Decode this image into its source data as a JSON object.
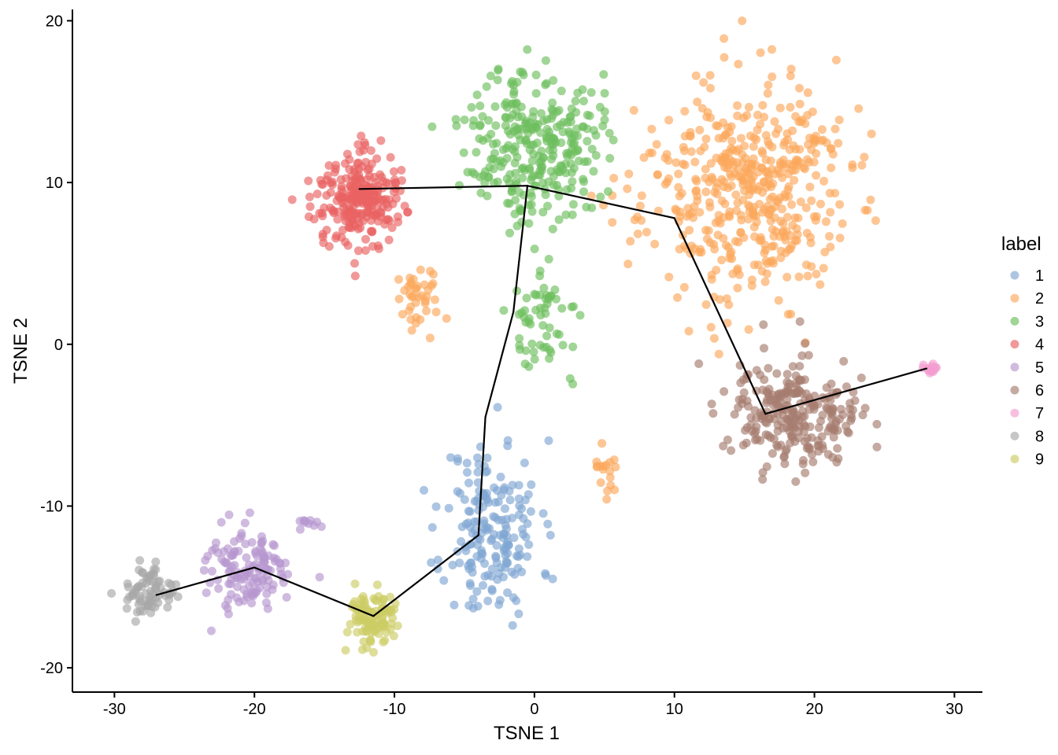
{
  "chart_data": {
    "type": "scatter",
    "title": "",
    "xlabel": "TSNE 1",
    "ylabel": "TSNE 2",
    "xlim": [
      -33,
      32
    ],
    "ylim": [
      -21.5,
      20.7
    ],
    "x_ticks": [
      -30,
      -20,
      -10,
      0,
      10,
      20,
      30
    ],
    "y_ticks": [
      -20,
      -10,
      0,
      10,
      20
    ],
    "x_tick_labels": [
      "-30",
      "-20",
      "-10",
      "0",
      "10",
      "20",
      "30"
    ],
    "y_tick_labels": [
      "-20",
      "-10",
      "0",
      "10",
      "20"
    ],
    "grid": false,
    "point_alpha": 0.65,
    "legend": {
      "title": "label",
      "position": "right",
      "entries": [
        "1",
        "2",
        "3",
        "4",
        "5",
        "6",
        "7",
        "8",
        "9"
      ]
    },
    "colors": {
      "1": "#7fa6d3",
      "2": "#fca85a",
      "3": "#6dbf5d",
      "4": "#e96262",
      "5": "#b796cf",
      "6": "#a67d6e",
      "7": "#f29ccf",
      "8": "#a8a8a8",
      "9": "#cdcc66"
    },
    "trajectory": {
      "x": [
        -12.5,
        -0.5,
        10.0,
        16.5,
        28.0,
        -0.5,
        -1.5,
        -3.5,
        -4.0,
        -11.5,
        -20.0,
        -27.0
      ],
      "y": [
        9.6,
        9.8,
        7.8,
        -4.3,
        -1.5,
        9.8,
        2.0,
        -4.5,
        -11.8,
        -16.8,
        -13.8,
        -15.5
      ],
      "segments": [
        [
          0,
          1
        ],
        [
          1,
          2
        ],
        [
          2,
          3
        ],
        [
          3,
          4
        ],
        [
          1,
          6
        ],
        [
          6,
          7
        ],
        [
          7,
          8
        ],
        [
          8,
          9
        ],
        [
          9,
          10
        ],
        [
          10,
          11
        ]
      ]
    },
    "clusters": [
      {
        "label": "1",
        "cx": -3.0,
        "cy": -11.5,
        "sx": 2.8,
        "sy": 4.5,
        "n": 190,
        "seed": 11
      },
      {
        "label": "2",
        "cx": 15.0,
        "cy": 9.5,
        "sx": 6.0,
        "sy": 5.5,
        "n": 480,
        "seed": 23
      },
      {
        "label": "2",
        "cx": -8.5,
        "cy": 2.8,
        "sx": 1.6,
        "sy": 1.5,
        "n": 40,
        "seed": 29
      },
      {
        "label": "2",
        "cx": 5.0,
        "cy": -8.0,
        "sx": 0.8,
        "sy": 1.4,
        "n": 18,
        "seed": 31
      },
      {
        "label": "3",
        "cx": 0.0,
        "cy": 12.5,
        "sx": 3.8,
        "sy": 3.8,
        "n": 300,
        "seed": 37
      },
      {
        "label": "3",
        "cx": 1.0,
        "cy": 1.5,
        "sx": 2.2,
        "sy": 2.5,
        "n": 60,
        "seed": 41
      },
      {
        "label": "4",
        "cx": -12.5,
        "cy": 9.0,
        "sx": 2.6,
        "sy": 2.4,
        "n": 250,
        "seed": 43
      },
      {
        "label": "5",
        "cx": -20.5,
        "cy": -14.0,
        "sx": 2.6,
        "sy": 1.9,
        "n": 135,
        "seed": 47
      },
      {
        "label": "5",
        "cx": -16.0,
        "cy": -11.0,
        "sx": 0.9,
        "sy": 0.3,
        "n": 10,
        "seed": 53
      },
      {
        "label": "6",
        "cx": 18.5,
        "cy": -4.5,
        "sx": 3.8,
        "sy": 2.5,
        "n": 260,
        "seed": 59
      },
      {
        "label": "7",
        "cx": 28.2,
        "cy": -1.5,
        "sx": 0.5,
        "sy": 0.25,
        "n": 18,
        "seed": 61
      },
      {
        "label": "8",
        "cx": -27.5,
        "cy": -15.5,
        "sx": 1.5,
        "sy": 1.3,
        "n": 75,
        "seed": 67
      },
      {
        "label": "9",
        "cx": -11.5,
        "cy": -17.0,
        "sx": 1.5,
        "sy": 1.5,
        "n": 110,
        "seed": 71
      }
    ]
  }
}
